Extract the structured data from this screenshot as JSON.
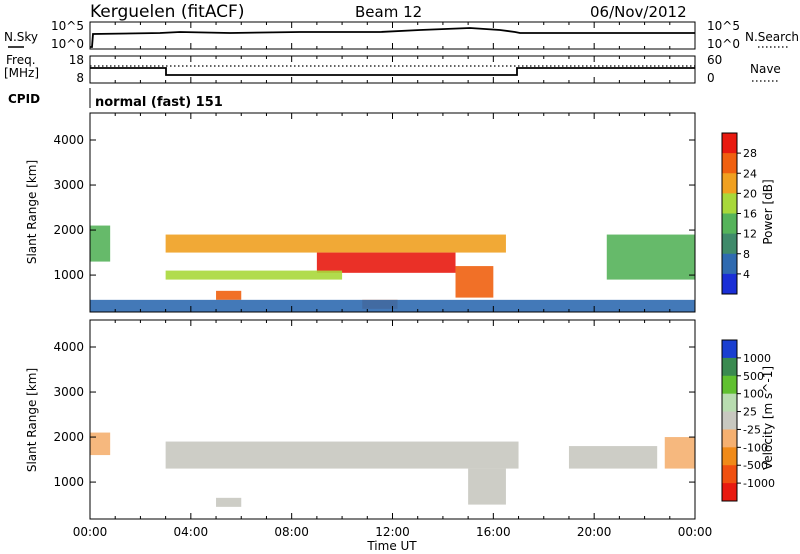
{
  "header": {
    "station": "Kerguelen (fitACF)",
    "beam": "Beam 12",
    "date": "06/Nov/2012"
  },
  "noise_panel": {
    "left_label": "N.Sky",
    "right_label": "N.Search",
    "left_ticks": [
      "10^5",
      "10^0"
    ],
    "right_ticks": [
      "10^5",
      "10^0"
    ]
  },
  "freq_panel": {
    "left_label_1": "Freq.",
    "left_label_2": "[MHz]",
    "left_ticks": [
      "18",
      "8"
    ],
    "right_label": "Nave",
    "right_ticks": [
      "60",
      "0"
    ]
  },
  "cpid": {
    "label": "CPID",
    "value": "normal (fast) 151"
  },
  "colors": {
    "power": [
      "#1a2fd6",
      "#2f6ab0",
      "#3f8a6a",
      "#55b35a",
      "#a8d83a",
      "#f0a020",
      "#f06010",
      "#e81a10"
    ],
    "velocity": [
      "#e81a10",
      "#f05010",
      "#f08a18",
      "#f5b070",
      "#c8c8c0",
      "#b8dcb0",
      "#60c030",
      "#3a8a50",
      "#1a3fd0"
    ]
  },
  "chart_data": [
    {
      "type": "heatmap",
      "name": "power",
      "ylabel": "Slant Range [km]",
      "xlabel": "",
      "ylim": [
        180,
        4600
      ],
      "xlim": [
        0,
        24
      ],
      "yticks": [
        "4000",
        "3000",
        "2000",
        "1000"
      ],
      "colorbar": {
        "label": "Power [dB]",
        "ticks": [
          "28",
          "24",
          "20",
          "16",
          "12",
          "8",
          "4"
        ],
        "range": [
          0,
          32
        ]
      },
      "regions": [
        {
          "t0": 3.0,
          "t1": 16.5,
          "r0": 1500,
          "r1": 1900,
          "level": 22
        },
        {
          "t0": 9.0,
          "t1": 14.5,
          "r0": 1050,
          "r1": 1500,
          "level": 28
        },
        {
          "t0": 3.0,
          "t1": 10.0,
          "r0": 900,
          "r1": 1100,
          "level": 16
        },
        {
          "t0": 14.5,
          "t1": 16.0,
          "r0": 500,
          "r1": 1200,
          "level": 24
        },
        {
          "t0": 0.0,
          "t1": 0.8,
          "r0": 1300,
          "r1": 2100,
          "level": 12
        },
        {
          "t0": 20.5,
          "t1": 24.0,
          "r0": 900,
          "r1": 1900,
          "level": 12
        },
        {
          "t0": 5.0,
          "t1": 6.0,
          "r0": 450,
          "r1": 650,
          "level": 26
        },
        {
          "t0": 10.8,
          "t1": 12.2,
          "r0": 250,
          "r1": 450,
          "level": 26
        },
        {
          "t0": 0.0,
          "t1": 24.0,
          "r0": 180,
          "r1": 450,
          "level": 6
        }
      ]
    },
    {
      "type": "heatmap",
      "name": "velocity",
      "ylabel": "Slant Range [km]",
      "xlabel": "Time UT",
      "ylim": [
        180,
        4600
      ],
      "xlim": [
        0,
        24
      ],
      "yticks": [
        "4000",
        "3000",
        "2000",
        "1000"
      ],
      "xticks": [
        "00:00",
        "04:00",
        "08:00",
        "12:00",
        "16:00",
        "20:00",
        "00:00"
      ],
      "colorbar": {
        "label": "Velocity [m s^-1]",
        "ticks": [
          "1000",
          "500",
          "100",
          "25",
          "-25",
          "-100",
          "-500",
          "-1000"
        ],
        "range": [
          -1000,
          1000
        ]
      },
      "regions": [
        {
          "t0": 3.0,
          "t1": 17.0,
          "r0": 1300,
          "r1": 1900,
          "level": 0
        },
        {
          "t0": 15.0,
          "t1": 16.5,
          "r0": 500,
          "r1": 1300,
          "level": 80
        },
        {
          "t0": 0.0,
          "t1": 0.8,
          "r0": 1600,
          "r1": 2100,
          "level": -300
        },
        {
          "t0": 22.8,
          "t1": 24.0,
          "r0": 1300,
          "r1": 2000,
          "level": -300
        },
        {
          "t0": 19.0,
          "t1": 22.5,
          "r0": 1300,
          "r1": 1800,
          "level": 0
        },
        {
          "t0": 5.0,
          "t1": 6.0,
          "r0": 450,
          "r1": 650,
          "level": -60
        }
      ]
    }
  ]
}
